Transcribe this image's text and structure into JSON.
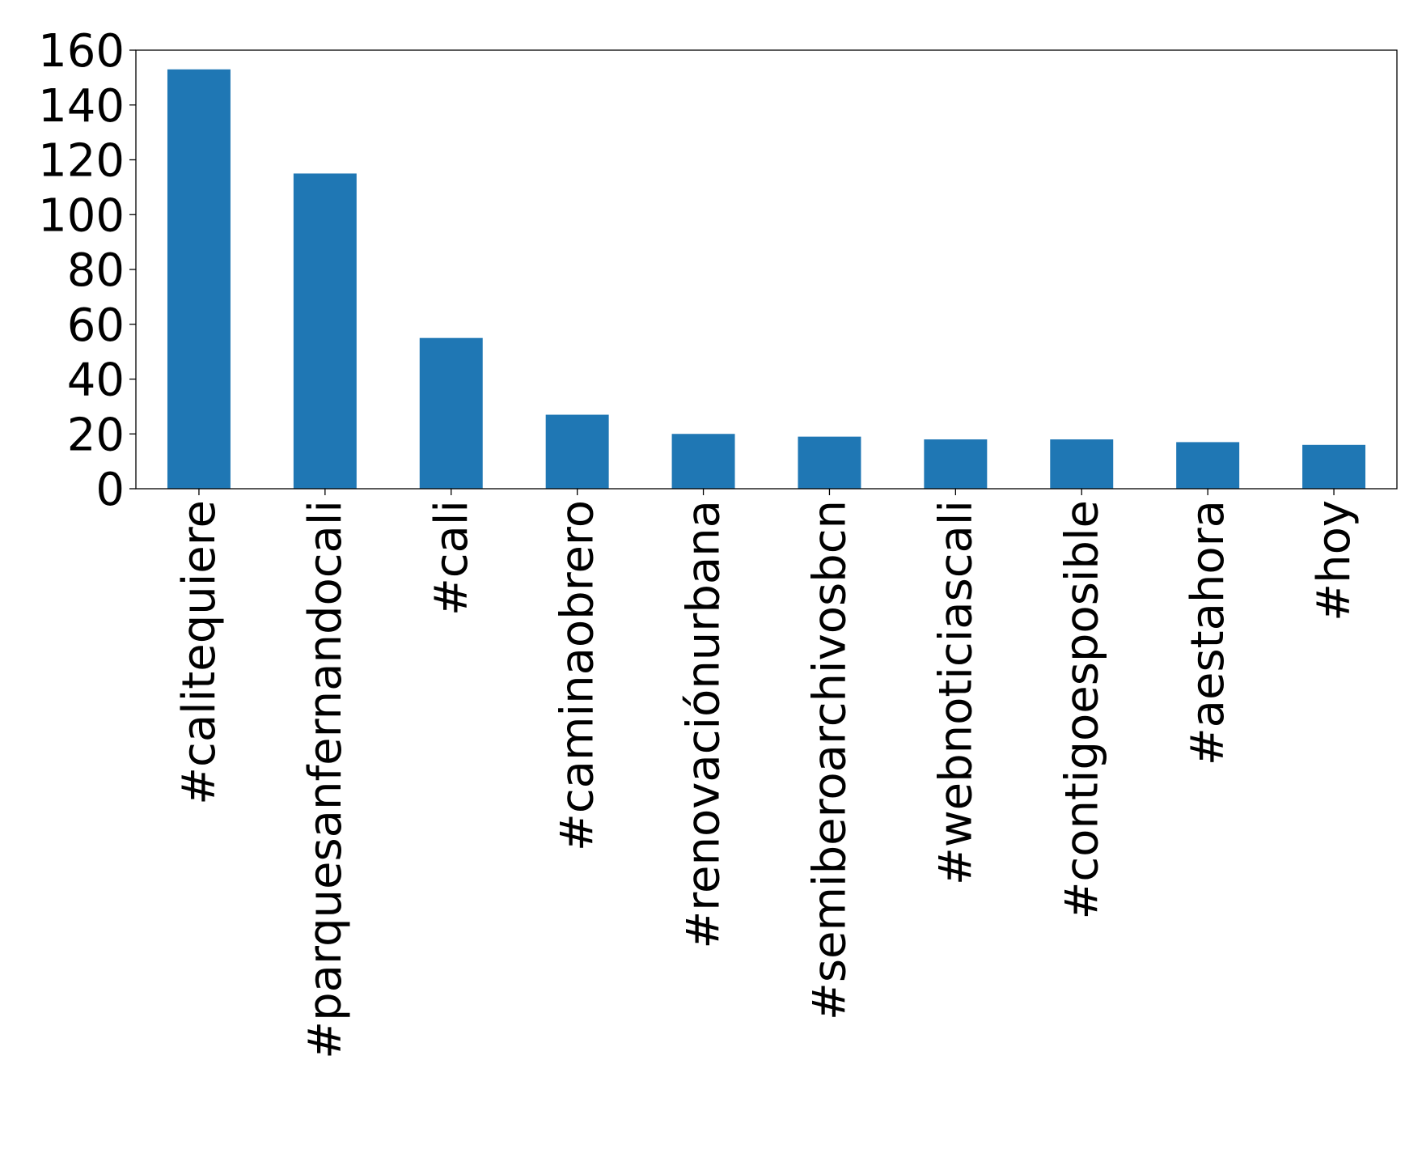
{
  "chart_data": {
    "type": "bar",
    "title": "",
    "xlabel": "",
    "ylabel": "",
    "categories": [
      "#calitequiere",
      "#parquesanfernandocali",
      "#cali",
      "#caminaobrero",
      "#renovaciónurbana",
      "#semiberoarchivosbcn",
      "#webnoticiascali",
      "#contigoesposible",
      "#aestahora",
      "#hoy"
    ],
    "values": [
      153,
      115,
      55,
      27,
      20,
      19,
      18,
      18,
      17,
      16
    ],
    "ylim": [
      0,
      160
    ],
    "yticks": [
      0,
      20,
      40,
      60,
      80,
      100,
      120,
      140,
      160
    ],
    "grid": false,
    "legend": "none",
    "bar_color": "#1f77b4"
  }
}
